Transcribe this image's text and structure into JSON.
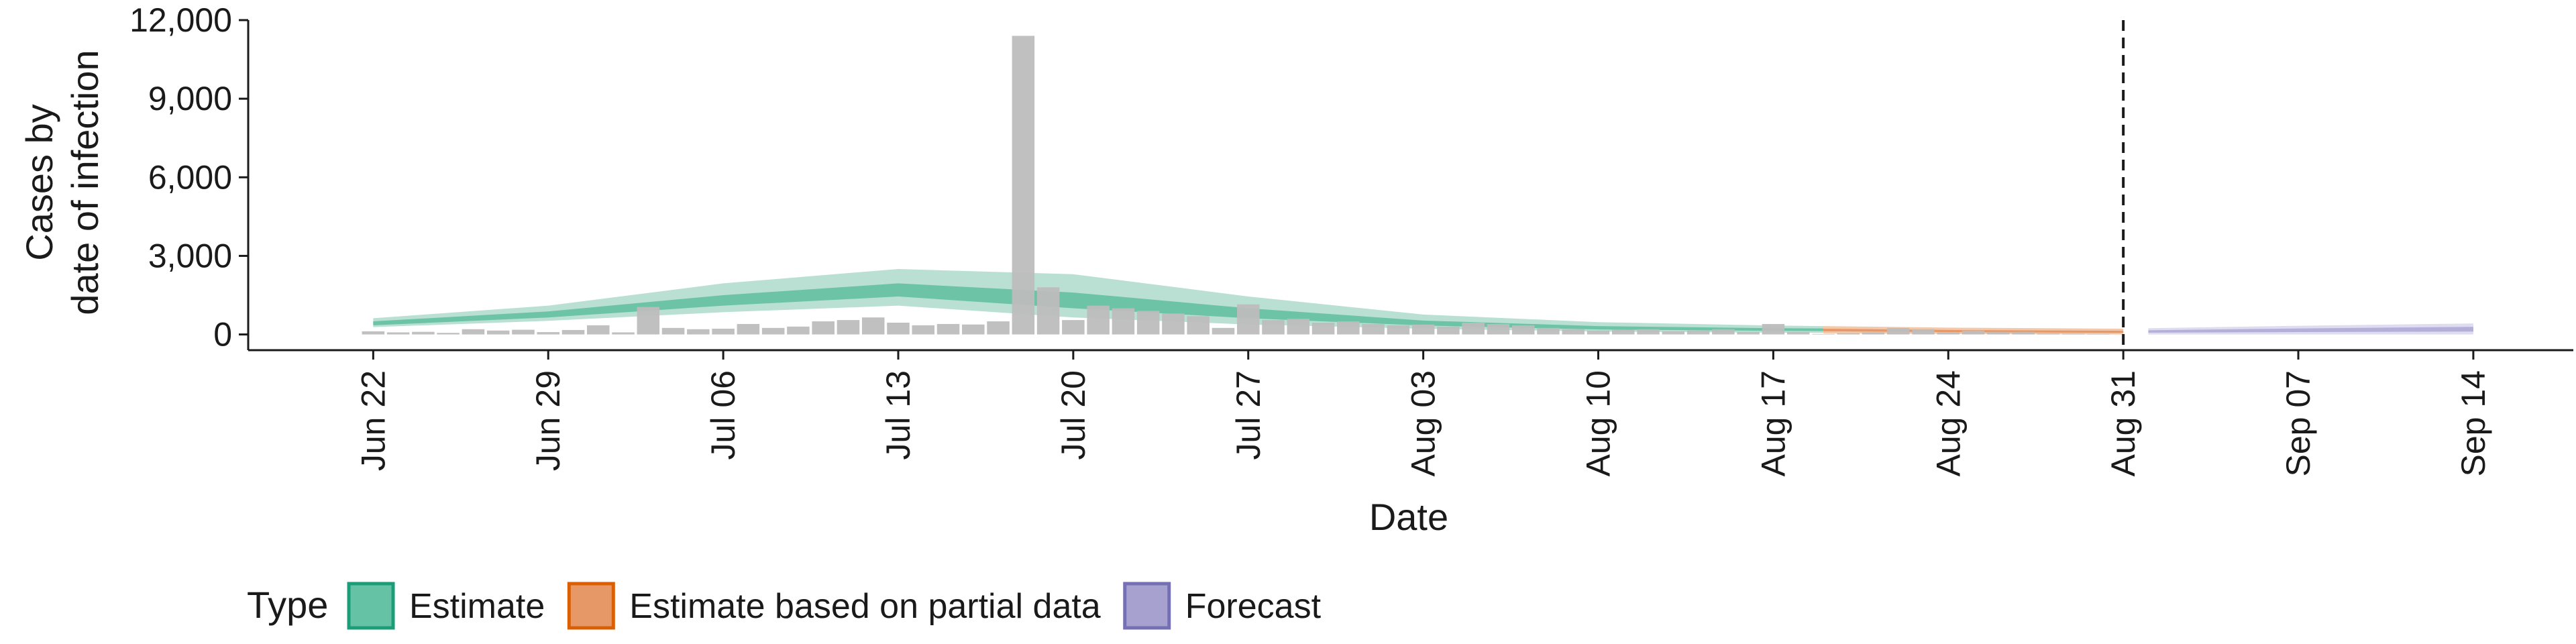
{
  "chart_data": {
    "type": "bar",
    "title": "",
    "xlabel": "Date",
    "ylabel_lines": [
      "Cases by",
      "date of infection"
    ],
    "ylim": [
      -600,
      12000
    ],
    "y_ticks": [
      0,
      3000,
      6000,
      9000,
      12000
    ],
    "y_tick_labels": [
      "0",
      "3,000",
      "6,000",
      "9,000",
      "12,000"
    ],
    "x_range": [
      "2020-06-17",
      "2020-09-18"
    ],
    "x_ticks": [
      "2020-06-22",
      "2020-06-29",
      "2020-07-06",
      "2020-07-13",
      "2020-07-20",
      "2020-07-27",
      "2020-08-03",
      "2020-08-10",
      "2020-08-17",
      "2020-08-24",
      "2020-08-31",
      "2020-09-07",
      "2020-09-14"
    ],
    "x_tick_labels": [
      "Jun 22",
      "Jun 29",
      "Jul 06",
      "Jul 13",
      "Jul 20",
      "Jul 27",
      "Aug 03",
      "Aug 10",
      "Aug 17",
      "Aug 24",
      "Aug 31",
      "Sep 07",
      "Sep 14"
    ],
    "vline_date": "2020-08-31",
    "grid": false,
    "legend_title": "Type",
    "legend_position": "bottom-left",
    "legend": [
      {
        "label": "Estimate",
        "fill": "#66c2a5",
        "stroke": "#1b9e77"
      },
      {
        "label": "Estimate based on partial data",
        "fill": "#e69866",
        "stroke": "#d95f02"
      },
      {
        "label": "Forecast",
        "fill": "#a6a1cf",
        "stroke": "#7570b3"
      }
    ],
    "colors": {
      "bar": "#bdbdbd",
      "estimate_outer": "#b9e0d3",
      "estimate_inner": "#6cc3a6",
      "partial_outer": "#f3c8ab",
      "partial_inner": "#e69866",
      "forecast_outer": "#dddcf0",
      "forecast_inner": "#b3afd9"
    },
    "observed_cases": {
      "dates": [
        "2020-06-22",
        "2020-06-23",
        "2020-06-24",
        "2020-06-25",
        "2020-06-26",
        "2020-06-27",
        "2020-06-28",
        "2020-06-29",
        "2020-06-30",
        "2020-07-01",
        "2020-07-02",
        "2020-07-03",
        "2020-07-04",
        "2020-07-05",
        "2020-07-06",
        "2020-07-07",
        "2020-07-08",
        "2020-07-09",
        "2020-07-10",
        "2020-07-11",
        "2020-07-12",
        "2020-07-13",
        "2020-07-14",
        "2020-07-15",
        "2020-07-16",
        "2020-07-17",
        "2020-07-18",
        "2020-07-19",
        "2020-07-20",
        "2020-07-21",
        "2020-07-22",
        "2020-07-23",
        "2020-07-24",
        "2020-07-25",
        "2020-07-26",
        "2020-07-27",
        "2020-07-28",
        "2020-07-29",
        "2020-07-30",
        "2020-07-31",
        "2020-08-01",
        "2020-08-02",
        "2020-08-03",
        "2020-08-04",
        "2020-08-05",
        "2020-08-06",
        "2020-08-07",
        "2020-08-08",
        "2020-08-09",
        "2020-08-10",
        "2020-08-11",
        "2020-08-12",
        "2020-08-13",
        "2020-08-14",
        "2020-08-15",
        "2020-08-16",
        "2020-08-17",
        "2020-08-18",
        "2020-08-19",
        "2020-08-20",
        "2020-08-21",
        "2020-08-22",
        "2020-08-23",
        "2020-08-24",
        "2020-08-25",
        "2020-08-26",
        "2020-08-27",
        "2020-08-28",
        "2020-08-29",
        "2020-08-30"
      ],
      "values": [
        120,
        80,
        100,
        60,
        200,
        150,
        180,
        90,
        170,
        350,
        80,
        1050,
        250,
        200,
        220,
        400,
        250,
        300,
        500,
        550,
        650,
        450,
        350,
        400,
        380,
        500,
        11400,
        1800,
        550,
        1100,
        1000,
        900,
        800,
        700,
        250,
        1150,
        550,
        600,
        450,
        500,
        400,
        350,
        380,
        300,
        450,
        400,
        350,
        250,
        200,
        150,
        180,
        200,
        120,
        150,
        200,
        100,
        400,
        100,
        20,
        50,
        80,
        250,
        200,
        80,
        150,
        100,
        100,
        40,
        30,
        20
      ]
    },
    "estimate": {
      "dates": [
        "2020-06-22",
        "2020-06-29",
        "2020-07-06",
        "2020-07-13",
        "2020-07-20",
        "2020-07-27",
        "2020-08-03",
        "2020-08-10",
        "2020-08-17",
        "2020-08-19"
      ],
      "median": [
        420,
        760,
        1300,
        1700,
        1300,
        800,
        430,
        250,
        190,
        180
      ],
      "inner_low": [
        350,
        650,
        1100,
        1450,
        1000,
        620,
        340,
        190,
        140,
        130
      ],
      "inner_high": [
        500,
        880,
        1500,
        1950,
        1600,
        1000,
        530,
        320,
        240,
        230
      ],
      "outer_low": [
        280,
        520,
        850,
        1100,
        650,
        380,
        220,
        110,
        70,
        60
      ],
      "outer_high": [
        620,
        1100,
        1950,
        2500,
        2300,
        1450,
        760,
        470,
        340,
        320
      ]
    },
    "partial": {
      "dates": [
        "2020-08-19",
        "2020-08-24",
        "2020-08-31"
      ],
      "median": [
        170,
        130,
        100
      ],
      "inner_low": [
        120,
        90,
        60
      ],
      "inner_high": [
        220,
        170,
        140
      ],
      "outer_low": [
        40,
        20,
        0
      ],
      "outer_high": [
        320,
        260,
        220
      ]
    },
    "forecast": {
      "dates": [
        "2020-09-01",
        "2020-09-07",
        "2020-09-14"
      ],
      "median": [
        110,
        150,
        200
      ],
      "inner_low": [
        70,
        90,
        110
      ],
      "inner_high": [
        160,
        230,
        290
      ],
      "outer_low": [
        0,
        0,
        0
      ],
      "outer_high": [
        240,
        330,
        420
      ]
    }
  }
}
